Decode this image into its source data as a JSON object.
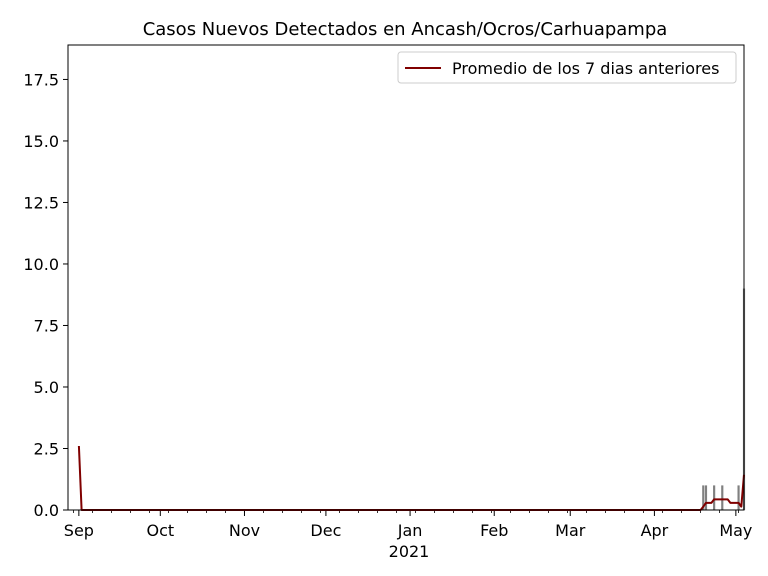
{
  "chart_data": {
    "type": "bar",
    "title": "Casos Nuevos Detectados en Ancash/Ocros/Carhuapampa",
    "xlabel": "",
    "ylabel": "",
    "x_range": [
      "2020-08-28",
      "2021-05-04"
    ],
    "ylim": [
      0,
      18.9
    ],
    "y_ticks": [
      0.0,
      2.5,
      5.0,
      7.5,
      10.0,
      12.5,
      15.0,
      17.5
    ],
    "y_tick_labels": [
      "0.0",
      "2.5",
      "5.0",
      "7.5",
      "10.0",
      "12.5",
      "15.0",
      "17.5"
    ],
    "x_ticks": [
      {
        "date": "2020-09-01",
        "label": "Sep"
      },
      {
        "date": "2020-10-01",
        "label": "Oct"
      },
      {
        "date": "2020-11-01",
        "label": "Nov"
      },
      {
        "date": "2020-12-01",
        "label": "Dec"
      },
      {
        "date": "2021-01-01",
        "label": "Jan"
      },
      {
        "date": "2021-02-01",
        "label": "Feb"
      },
      {
        "date": "2021-03-01",
        "label": "Mar"
      },
      {
        "date": "2021-04-01",
        "label": "Apr"
      },
      {
        "date": "2021-05-01",
        "label": "May"
      }
    ],
    "x_year_label": "2021",
    "grid": false,
    "legend": {
      "position": "top-right",
      "entries": [
        "Promedio de los 7 dias anteriores"
      ]
    },
    "bars": {
      "color": "#808080",
      "points": [
        {
          "date": "2021-04-19",
          "value": 1
        },
        {
          "date": "2021-04-20",
          "value": 1
        },
        {
          "date": "2021-04-23",
          "value": 1
        },
        {
          "date": "2021-04-26",
          "value": 1
        },
        {
          "date": "2021-05-02",
          "value": 1
        },
        {
          "date": "2021-05-04",
          "value": 9
        }
      ]
    },
    "series": [
      {
        "name": "Promedio de los 7 dias anteriores",
        "color": "#800000",
        "points": [
          {
            "date": "2020-09-01",
            "value": 2.6
          },
          {
            "date": "2020-09-02",
            "value": 0
          },
          {
            "date": "2021-04-18",
            "value": 0
          },
          {
            "date": "2021-04-19",
            "value": 0.14
          },
          {
            "date": "2021-04-20",
            "value": 0.29
          },
          {
            "date": "2021-04-22",
            "value": 0.29
          },
          {
            "date": "2021-04-23",
            "value": 0.43
          },
          {
            "date": "2021-04-28",
            "value": 0.43
          },
          {
            "date": "2021-04-29",
            "value": 0.29
          },
          {
            "date": "2021-05-02",
            "value": 0.29
          },
          {
            "date": "2021-05-03",
            "value": 0.14
          },
          {
            "date": "2021-05-04",
            "value": 1.43
          }
        ]
      }
    ]
  }
}
